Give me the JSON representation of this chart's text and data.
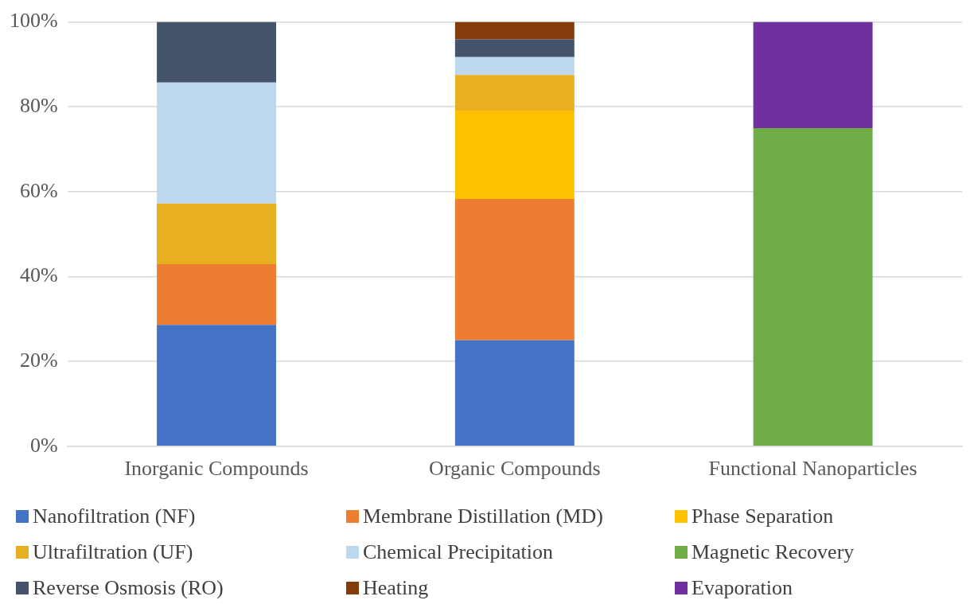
{
  "chart_data": {
    "type": "bar",
    "stacked": true,
    "categories": [
      "Inorganic Compounds",
      "Organic Compounds",
      "Functional Nanoparticles"
    ],
    "series": [
      {
        "name": "Nanofiltration (NF)",
        "color": "#4472c4",
        "values": [
          28.6,
          25,
          null
        ]
      },
      {
        "name": "Membrane Distillation (MD)",
        "color": "#ed7d31",
        "values": [
          14.3,
          33.3,
          null
        ]
      },
      {
        "name": "Phase Separation",
        "color": "#ffc000",
        "values": [
          null,
          20.8,
          null
        ]
      },
      {
        "name": "Ultrafiltration (UF)",
        "color": "#e8b020",
        "values": [
          14.3,
          8.4,
          null
        ]
      },
      {
        "name": "Chemical Precipitation",
        "color": "#bdd7ee",
        "values": [
          28.5,
          4.2,
          null
        ]
      },
      {
        "name": "Magnetic Recovery",
        "color": "#70ad47",
        "values": [
          null,
          null,
          75
        ]
      },
      {
        "name": "Reverse Osmosis (RO)",
        "color": "#44546a",
        "values": [
          14.3,
          4.2,
          null
        ]
      },
      {
        "name": "Heating",
        "color": "#843c0c",
        "values": [
          null,
          4.1,
          null
        ]
      },
      {
        "name": "Evaporation",
        "color": "#7030a0",
        "values": [
          null,
          null,
          25
        ]
      }
    ],
    "ylim": [
      0,
      100
    ],
    "yticks": [
      {
        "value": 0,
        "label": "0%"
      },
      {
        "value": 20,
        "label": "20%"
      },
      {
        "value": 40,
        "label": "40%"
      },
      {
        "value": 60,
        "label": "60%"
      },
      {
        "value": 80,
        "label": "80%"
      },
      {
        "value": 100,
        "label": "100%"
      }
    ],
    "grid": "y",
    "legend": "bottom"
  }
}
